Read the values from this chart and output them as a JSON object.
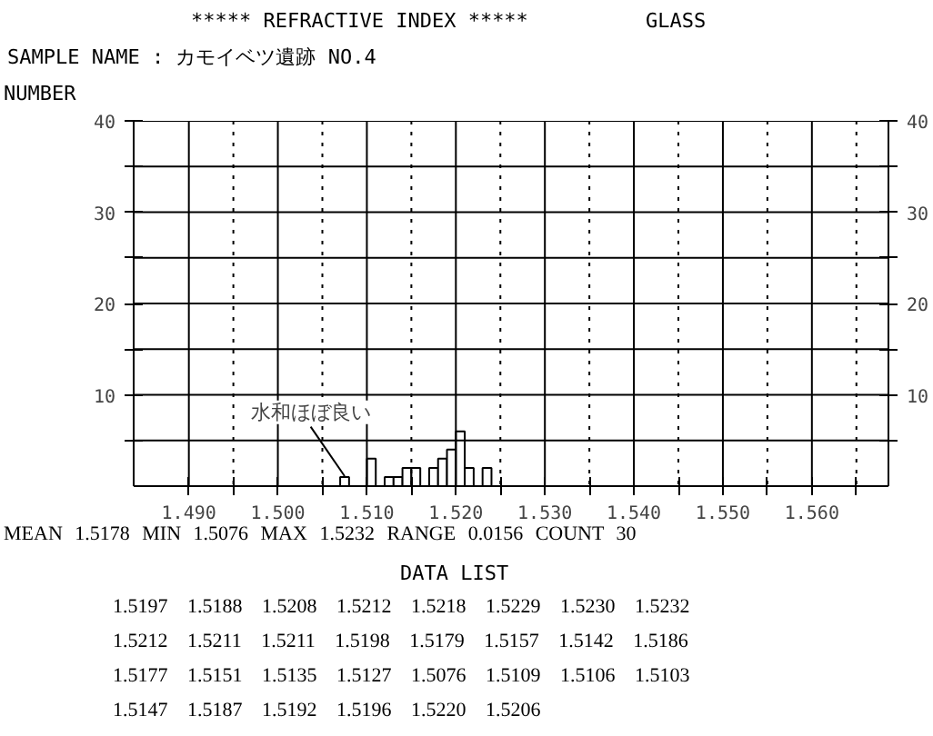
{
  "chart_data": {
    "type": "histogram",
    "title": "***** REFRACTIVE INDEX *****",
    "subtitle": "SAMPLE NAME : カモイベツ遺跡 NO.4",
    "ylabel": "NUMBER",
    "bins": [
      1.507,
      1.508,
      1.509,
      1.51,
      1.511,
      1.512,
      1.513,
      1.514,
      1.515,
      1.516,
      1.517,
      1.518,
      1.519,
      1.52,
      1.521,
      1.522,
      1.523,
      1.524
    ],
    "values": [
      1,
      0,
      0,
      3,
      0,
      1,
      1,
      2,
      2,
      0,
      2,
      3,
      4,
      6,
      2,
      0,
      2
    ],
    "color": "#ffffff",
    "xlim": [
      1.4838,
      1.5686
    ],
    "ylim": [
      0,
      40
    ],
    "xticks": [
      {
        "value": 1.49,
        "label": "1.490"
      },
      {
        "value": 1.495,
        "label": null
      },
      {
        "value": 1.5,
        "label": "1.500"
      },
      {
        "value": 1.505,
        "label": null
      },
      {
        "value": 1.51,
        "label": "1.510"
      },
      {
        "value": 1.515,
        "label": null
      },
      {
        "value": 1.52,
        "label": "1.520"
      },
      {
        "value": 1.525,
        "label": null
      },
      {
        "value": 1.53,
        "label": "1.530"
      },
      {
        "value": 1.535,
        "label": null
      },
      {
        "value": 1.54,
        "label": "1.540"
      },
      {
        "value": 1.545,
        "label": null
      },
      {
        "value": 1.55,
        "label": "1.550"
      },
      {
        "value": 1.555,
        "label": null
      },
      {
        "value": 1.56,
        "label": "1.560"
      },
      {
        "value": 1.565,
        "label": null
      }
    ],
    "yticks": [
      {
        "value": 5,
        "label": null
      },
      10,
      {
        "value": 15,
        "label": null
      },
      20,
      {
        "value": 25,
        "label": null
      },
      30,
      {
        "value": 35,
        "label": null
      },
      40
    ],
    "y2lim": [
      0,
      40
    ],
    "y2ticks": [
      {
        "value": 5,
        "label": null
      },
      10,
      {
        "value": 15,
        "label": null
      },
      20,
      {
        "value": 25,
        "label": null
      },
      30,
      {
        "value": 35,
        "label": null
      },
      40
    ],
    "grid": true,
    "annotations": [
      {
        "text": "水和ほぼ良い",
        "x": 1.5075,
        "y": 1
      },
      "GLASS",
      "MEAN 1.5178 MIN 1.5076 MAX 1.5232 RANGE 0.0156 COUNT 30",
      "DATA LIST",
      "1.5197 1.5188 1.5208 1.5212 1.5218 1.5229 1.5230 1.5232",
      "1.5212 1.5211 1.5211 1.5198 1.5179 1.5157 1.5142 1.5186",
      "1.5177 1.5151 1.5135 1.5127 1.5076 1.5109 1.5106 1.5103",
      "1.5147 1.5187 1.5192 1.5196 1.5220 1.5206"
    ]
  }
}
